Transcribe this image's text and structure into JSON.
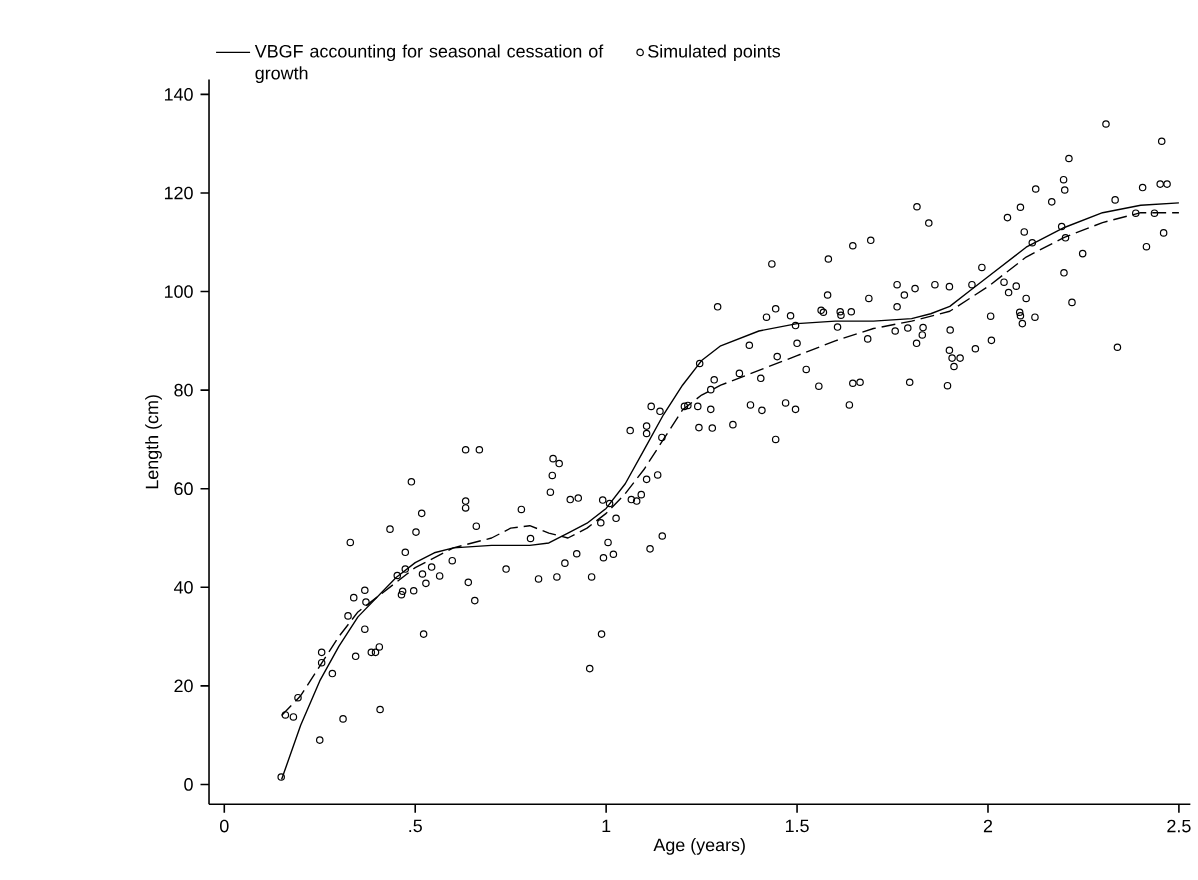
{
  "chart_data": {
    "type": "scatter",
    "xlabel": "Age (years)",
    "ylabel": "Length (cm)",
    "xlim": [
      -0.04,
      2.53
    ],
    "ylim": [
      -4,
      143
    ],
    "xticks": [
      0,
      {
        "value": 0.5,
        "label": ".5"
      },
      1,
      1.5,
      2,
      2.5
    ],
    "yticks": [
      0,
      20,
      40,
      60,
      80,
      100,
      120,
      140
    ],
    "grid": false,
    "legend": "top",
    "series": [
      {
        "name": "VBGF accounting for seasonal cessation of growth",
        "type": "line",
        "line_style": "solid",
        "marker": "none",
        "color": "#000000",
        "x": [
          0.15,
          0.2,
          0.25,
          0.3,
          0.35,
          0.4,
          0.45,
          0.5,
          0.55,
          0.6,
          0.7,
          0.8,
          0.85,
          0.9,
          0.95,
          1.0,
          1.05,
          1.1,
          1.15,
          1.2,
          1.25,
          1.3,
          1.4,
          1.5,
          1.6,
          1.7,
          1.8,
          1.85,
          1.9,
          1.95,
          2.0,
          2.05,
          2.1,
          2.2,
          2.3,
          2.4,
          2.5
        ],
        "values": [
          1,
          12,
          21,
          28,
          34,
          38,
          42,
          45,
          47,
          48,
          48.5,
          48.5,
          49,
          51,
          53,
          56,
          61,
          68,
          75,
          81,
          86,
          89,
          92,
          93.5,
          94,
          94,
          94.5,
          95.5,
          97,
          100,
          103,
          106,
          109,
          113,
          116,
          117.5,
          118
        ]
      },
      {
        "type": "line",
        "line_style": "dashed",
        "marker": "none",
        "color": "#000000",
        "x": [
          0.15,
          0.2,
          0.25,
          0.3,
          0.35,
          0.4,
          0.5,
          0.6,
          0.7,
          0.75,
          0.8,
          0.85,
          0.9,
          0.95,
          1.0,
          1.05,
          1.1,
          1.15,
          1.2,
          1.25,
          1.3,
          1.4,
          1.5,
          1.6,
          1.7,
          1.8,
          1.9,
          2.0,
          2.1,
          2.2,
          2.3,
          2.4,
          2.5
        ],
        "values": [
          14,
          18,
          24,
          30,
          35,
          38,
          44,
          48,
          50,
          52,
          52.5,
          51,
          50,
          52,
          55,
          59,
          64,
          70,
          76,
          79,
          81,
          84,
          87,
          90,
          92.5,
          94,
          96,
          101,
          107,
          111,
          114,
          116,
          116
        ]
      },
      {
        "name": "Simulated points",
        "marker": "circle",
        "color": "#000000",
        "x": [
          0.149,
          0.16,
          0.181,
          0.193,
          0.25,
          0.255,
          0.255,
          0.283,
          0.311,
          0.33,
          0.324,
          0.339,
          0.344,
          0.368,
          0.368,
          0.371,
          0.385,
          0.396,
          0.406,
          0.408,
          0.434,
          0.453,
          0.464,
          0.467,
          0.474,
          0.474,
          0.49,
          0.496,
          0.502,
          0.517,
          0.519,
          0.522,
          0.528,
          0.543,
          0.564,
          0.597,
          0.632,
          0.668,
          0.632,
          0.632,
          0.639,
          0.656,
          0.66,
          0.738,
          0.778,
          0.802,
          0.823,
          0.854,
          0.861,
          0.877,
          0.859,
          0.871,
          0.892,
          0.906,
          0.927,
          0.923,
          0.957,
          0.962,
          0.988,
          0.986,
          0.991,
          0.993,
          1.005,
          1.009,
          1.019,
          1.026,
          1.063,
          1.066,
          1.08,
          1.092,
          1.106,
          1.106,
          1.106,
          1.115,
          1.118,
          1.135,
          1.141,
          1.147,
          1.146,
          1.214,
          1.205,
          1.24,
          1.274,
          1.243,
          1.278,
          1.332,
          1.378,
          1.408,
          1.444,
          1.47,
          1.496,
          1.637,
          1.245,
          1.274,
          1.283,
          1.292,
          1.349,
          1.375,
          1.405,
          1.42,
          1.434,
          1.444,
          1.448,
          1.483,
          1.496,
          1.5,
          1.524,
          1.557,
          1.563,
          1.569,
          1.58,
          1.582,
          1.606,
          1.613,
          1.615,
          1.642,
          1.646,
          1.646,
          1.665,
          1.685,
          1.688,
          1.693,
          1.757,
          1.762,
          1.762,
          1.781,
          1.79,
          1.795,
          1.809,
          1.814,
          1.813,
          1.828,
          1.83,
          1.845,
          1.861,
          1.894,
          1.899,
          1.901,
          1.899,
          1.906,
          1.911,
          1.927,
          1.967,
          1.958,
          1.984,
          2.007,
          2.009,
          2.042,
          2.051,
          2.054,
          2.074,
          2.083,
          2.085,
          2.085,
          2.09,
          2.095,
          2.1,
          2.116,
          2.123,
          2.125,
          2.167,
          2.193,
          2.198,
          2.201,
          2.212,
          2.203,
          2.199,
          2.22,
          2.248,
          2.309,
          2.333,
          2.339,
          2.387,
          2.405,
          2.415,
          2.436,
          2.455,
          2.46,
          2.451,
          2.469
        ],
        "values": [
          1.5,
          14.1,
          13.7,
          17.6,
          9.0,
          26.8,
          24.7,
          22.5,
          13.3,
          49.1,
          34.2,
          37.9,
          26.0,
          39.4,
          31.5,
          37.0,
          26.8,
          26.8,
          27.9,
          15.2,
          51.8,
          42.4,
          38.5,
          39.2,
          47.1,
          43.7,
          61.4,
          39.3,
          51.2,
          55.0,
          42.7,
          30.5,
          40.8,
          44.1,
          42.3,
          45.4,
          67.9,
          67.9,
          57.5,
          56.1,
          41.0,
          37.3,
          52.4,
          43.7,
          55.8,
          49.9,
          41.7,
          59.3,
          66.1,
          65.1,
          62.7,
          42.1,
          44.9,
          57.8,
          58.1,
          46.8,
          23.5,
          42.1,
          30.5,
          53.1,
          57.7,
          46.0,
          49.1,
          57.0,
          46.7,
          54.0,
          71.8,
          57.8,
          57.5,
          58.8,
          72.7,
          71.2,
          61.9,
          47.8,
          76.7,
          62.8,
          75.7,
          50.4,
          70.4,
          76.9,
          76.7,
          76.7,
          76.1,
          72.4,
          72.3,
          73.0,
          77.0,
          75.9,
          70.0,
          77.4,
          76.1,
          77.0,
          85.4,
          80.1,
          82.1,
          96.9,
          83.4,
          89.1,
          82.4,
          94.8,
          105.6,
          96.5,
          86.8,
          95.1,
          93.1,
          89.5,
          84.2,
          80.8,
          96.2,
          95.8,
          99.3,
          106.6,
          92.8,
          95.9,
          95.2,
          95.9,
          109.3,
          81.4,
          81.6,
          90.4,
          98.6,
          110.4,
          92.0,
          96.9,
          101.4,
          99.3,
          92.6,
          81.6,
          100.6,
          117.2,
          89.5,
          91.2,
          92.7,
          113.9,
          101.4,
          80.9,
          101.0,
          92.2,
          88.1,
          86.5,
          84.8,
          86.5,
          88.4,
          101.4,
          104.9,
          95.0,
          90.1,
          101.9,
          115.0,
          99.8,
          101.1,
          95.8,
          117.1,
          95.1,
          93.5,
          112.1,
          98.6,
          109.9,
          94.8,
          120.8,
          118.2,
          113.2,
          122.7,
          120.6,
          127.0,
          110.9,
          103.8,
          97.8,
          107.7,
          134.0,
          118.6,
          88.7,
          115.9,
          121.1,
          109.1,
          115.9,
          130.5,
          111.9,
          121.8,
          121.8
        ]
      }
    ]
  }
}
